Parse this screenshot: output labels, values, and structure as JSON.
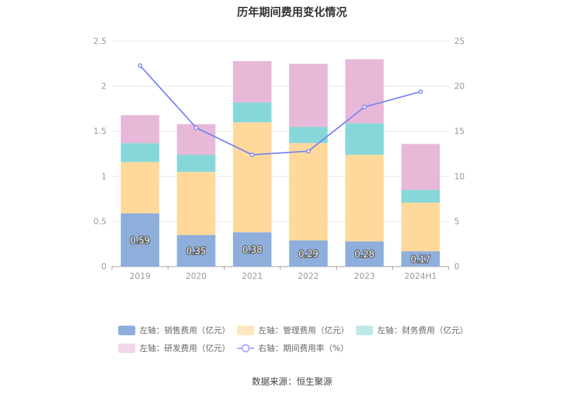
{
  "title": "历年期间费用变化情况",
  "source": "数据来源：恒生聚源",
  "chart_data": {
    "type": "bar",
    "stacked": true,
    "categories": [
      "2019",
      "2020",
      "2021",
      "2022",
      "2023",
      "2024H1"
    ],
    "left_axis": {
      "ylim": [
        0,
        2.5
      ],
      "ticks": [
        "0",
        "0.5",
        "1",
        "1.5",
        "2",
        "2.5"
      ]
    },
    "right_axis": {
      "ylim": [
        0,
        25
      ],
      "ticks": [
        "0",
        "5",
        "10",
        "15",
        "20",
        "25"
      ]
    },
    "grid": true,
    "legend_position": "bottom",
    "series": [
      {
        "name": "左轴：销售费用（亿元）",
        "type": "bar",
        "axis": "left",
        "color": "#8eaedc",
        "legend_color": "#8eaedc",
        "values": [
          0.59,
          0.35,
          0.38,
          0.29,
          0.28,
          0.17
        ],
        "labels": [
          "0.59",
          "0.35",
          "0.38",
          "0.29",
          "0.28",
          "0.17"
        ]
      },
      {
        "name": "左轴：管理费用（亿元）",
        "type": "bar",
        "axis": "left",
        "color": "#ffd99b",
        "legend_color": "#ffe7bd",
        "values": [
          0.57,
          0.7,
          1.22,
          1.08,
          0.96,
          0.54
        ]
      },
      {
        "name": "左轴：财务费用（亿元）",
        "type": "bar",
        "axis": "left",
        "color": "#86d7da",
        "legend_color": "#bde9ea",
        "values": [
          0.21,
          0.19,
          0.22,
          0.18,
          0.35,
          0.14
        ]
      },
      {
        "name": "左轴：研发费用（亿元）",
        "type": "bar",
        "axis": "left",
        "color": "#e8b8d8",
        "legend_color": "#f3d7e9",
        "values": [
          0.31,
          0.34,
          0.46,
          0.7,
          0.71,
          0.51
        ]
      },
      {
        "name": "右轴：期间费用率（%）",
        "type": "line",
        "axis": "right",
        "color": "#7b86f2",
        "legend_color": "#a8aef7",
        "values": [
          22.3,
          15.4,
          12.4,
          12.8,
          17.7,
          19.4
        ]
      }
    ]
  }
}
